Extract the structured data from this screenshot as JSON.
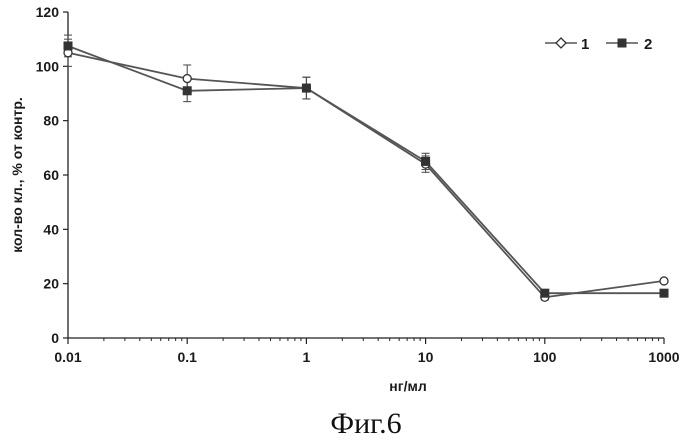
{
  "chart_data": {
    "type": "line",
    "x": [
      0.01,
      0.1,
      1,
      10,
      100,
      1000
    ],
    "xscale": "log",
    "xlim": [
      0.01,
      1000
    ],
    "xticks": [
      "0.01",
      "0.1",
      "1",
      "10",
      "100",
      "1000"
    ],
    "ylim": [
      0,
      120
    ],
    "yticks": [
      "0",
      "20",
      "40",
      "60",
      "80",
      "100",
      "120"
    ],
    "xlabel": "нг/мл",
    "ylabel": "кол-во кл., % от контр.",
    "legend_position": "top-right",
    "grid": false,
    "series": [
      {
        "name": "1",
        "marker": "open-circle",
        "values": [
          105,
          95.5,
          92,
          64,
          15,
          21
        ],
        "errors": [
          5,
          5,
          4,
          3,
          1,
          0
        ]
      },
      {
        "name": "2",
        "marker": "filled-square",
        "values": [
          107.5,
          91,
          92,
          65,
          16.5,
          16.5
        ],
        "errors": [
          4,
          4,
          4,
          3,
          1,
          0
        ]
      }
    ],
    "caption": "Фиг.6",
    "line_color": "#555555",
    "text_color": "#1a1a1a"
  }
}
